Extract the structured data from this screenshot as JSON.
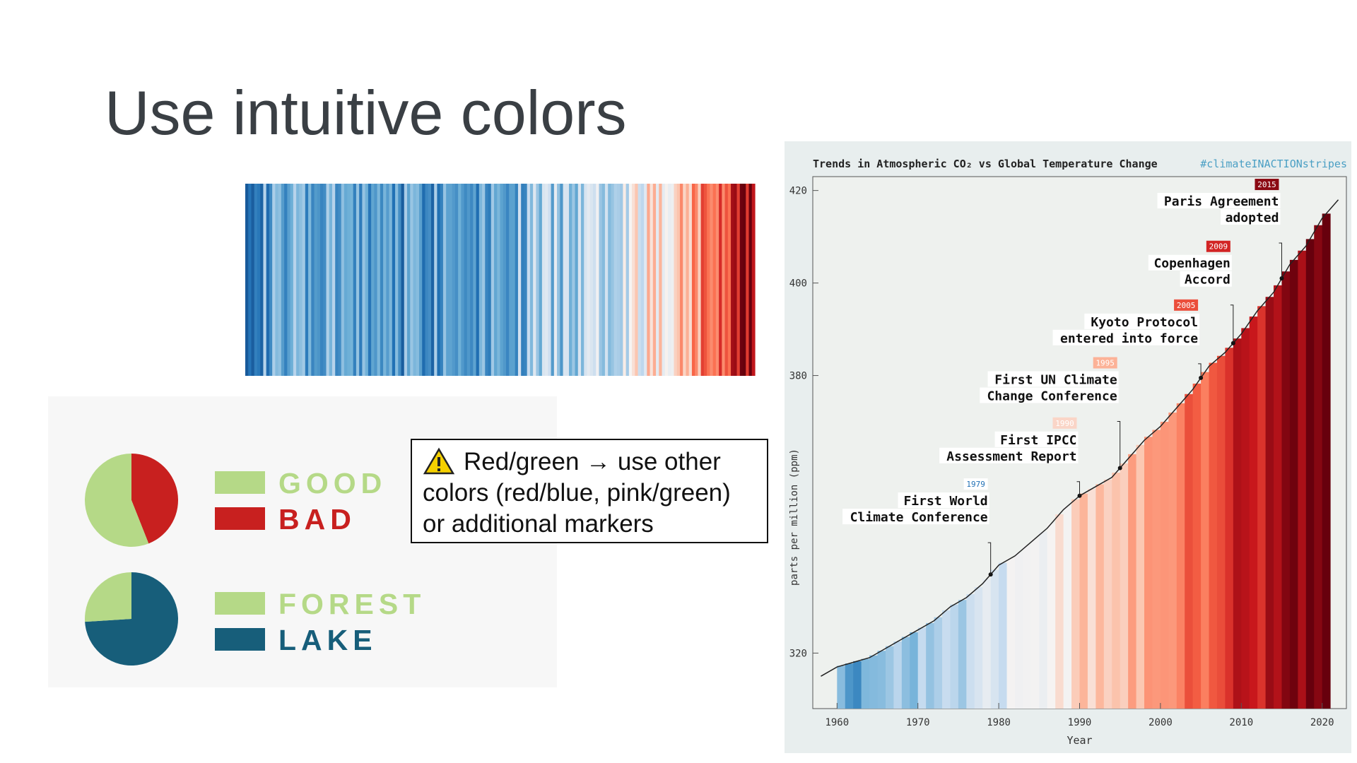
{
  "title": "Use intuitive colors",
  "pies": [
    {
      "labels": [
        "GOOD",
        "BAD"
      ],
      "values": [
        56,
        44
      ],
      "colors": [
        "#b5d987",
        "#c8201f"
      ]
    },
    {
      "labels": [
        "FOREST",
        "LAKE"
      ],
      "values": [
        26,
        74
      ],
      "colors": [
        "#b5d987",
        "#175e7a"
      ]
    }
  ],
  "callout": {
    "lines": [
      "Red/green → use other",
      "colors (red/blue, pink/green)",
      "or additional markers"
    ]
  },
  "chart_data": {
    "type": "line",
    "title": "Trends in Atmospheric CO₂ vs Global Temperature Change",
    "tag": "#climateINACTIONstripes",
    "x_label": "Year",
    "y_label": "parts per million (ppm)",
    "x": [
      1958,
      1960,
      1962,
      1964,
      1966,
      1968,
      1970,
      1972,
      1974,
      1976,
      1978,
      1980,
      1982,
      1984,
      1986,
      1988,
      1990,
      1992,
      1994,
      1996,
      1998,
      2000,
      2002,
      2004,
      2006,
      2008,
      2010,
      2012,
      2014,
      2016,
      2018,
      2020,
      2022
    ],
    "values": [
      315,
      317,
      318,
      319,
      321,
      323,
      325,
      327,
      330,
      332,
      335,
      339,
      341,
      344,
      347,
      351,
      354,
      356,
      358,
      362,
      366,
      369,
      373,
      377,
      382,
      385,
      389,
      394,
      398,
      404,
      408,
      414,
      418
    ],
    "color": "#222222",
    "xlim": [
      1957,
      2023
    ],
    "ylim": [
      308,
      423
    ],
    "xticks": [
      1960,
      1970,
      1980,
      1990,
      2000,
      2010,
      2020
    ],
    "yticks": [
      320,
      380,
      400,
      420
    ],
    "annotations": [
      {
        "year": 1979,
        "lines": [
          "First World",
          "Climate Conference"
        ]
      },
      {
        "year": 1990,
        "lines": [
          "First IPCC",
          "Assessment Report"
        ]
      },
      {
        "year": 1995,
        "lines": [
          "First UN Climate",
          "Change Conference"
        ]
      },
      {
        "year": 2005,
        "lines": [
          "Kyoto Protocol",
          "entered into force"
        ]
      },
      {
        "year": 2009,
        "lines": [
          "Copenhagen",
          "Accord"
        ]
      },
      {
        "year": 2015,
        "lines": [
          "Paris Agreement",
          "adopted"
        ]
      }
    ]
  }
}
